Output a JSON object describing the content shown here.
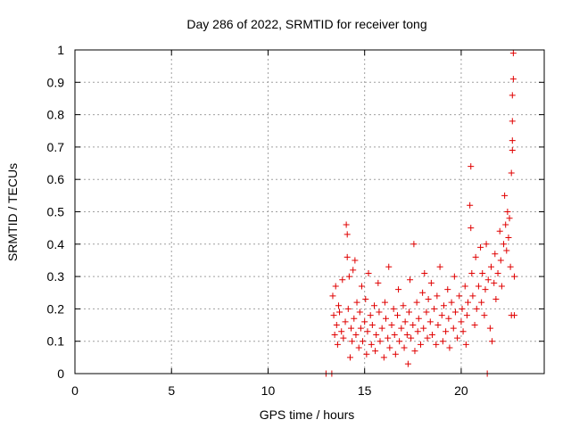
{
  "chart_data": {
    "type": "scatter",
    "title": "Day 286 of 2022, SRMTID for receiver tong",
    "xlabel": "GPS time / hours",
    "ylabel": "SRMTID / TECUs",
    "xlim": [
      0,
      24.3
    ],
    "ylim": [
      0,
      1
    ],
    "xticks": [
      0,
      5,
      10,
      15,
      20
    ],
    "xtick_labels": [
      "0",
      "5",
      "10",
      "15",
      "20"
    ],
    "yticks": [
      0,
      0.1,
      0.2,
      0.3,
      0.4,
      0.5,
      0.6,
      0.7,
      0.8,
      0.9,
      1
    ],
    "ytick_labels": [
      "0",
      "0.1",
      "0.2",
      "0.3",
      "0.4",
      "0.5",
      "0.6",
      "0.7",
      "0.8",
      "0.9",
      "1"
    ],
    "grid": true,
    "marker_color": "#e00000",
    "series": [
      {
        "name": "SRMTID",
        "marker": "plus",
        "points": [
          [
            13.35,
            0.24
          ],
          [
            13.4,
            0.18
          ],
          [
            13.45,
            0.12
          ],
          [
            13.5,
            0.27
          ],
          [
            13.55,
            0.15
          ],
          [
            13.6,
            0.09
          ],
          [
            13.65,
            0.21
          ],
          [
            13.7,
            0.19
          ],
          [
            13.8,
            0.13
          ],
          [
            13.85,
            0.29
          ],
          [
            13.9,
            0.11
          ],
          [
            14.0,
            0.16
          ],
          [
            14.05,
            0.46
          ],
          [
            14.1,
            0.43
          ],
          [
            14.1,
            0.36
          ],
          [
            14.15,
            0.2
          ],
          [
            14.2,
            0.3
          ],
          [
            14.25,
            0.05
          ],
          [
            14.3,
            0.14
          ],
          [
            14.35,
            0.1
          ],
          [
            14.4,
            0.32
          ],
          [
            14.45,
            0.17
          ],
          [
            14.5,
            0.35
          ],
          [
            14.55,
            0.12
          ],
          [
            14.6,
            0.22
          ],
          [
            14.7,
            0.08
          ],
          [
            14.75,
            0.19
          ],
          [
            14.8,
            0.14
          ],
          [
            14.85,
            0.27
          ],
          [
            14.9,
            0.1
          ],
          [
            15.0,
            0.16
          ],
          [
            15.05,
            0.23
          ],
          [
            15.1,
            0.06
          ],
          [
            15.15,
            0.13
          ],
          [
            15.2,
            0.31
          ],
          [
            15.3,
            0.18
          ],
          [
            15.35,
            0.09
          ],
          [
            15.4,
            0.15
          ],
          [
            15.5,
            0.21
          ],
          [
            15.55,
            0.07
          ],
          [
            15.6,
            0.12
          ],
          [
            15.7,
            0.28
          ],
          [
            15.75,
            0.19
          ],
          [
            15.8,
            0.1
          ],
          [
            15.9,
            0.14
          ],
          [
            16.0,
            0.05
          ],
          [
            16.05,
            0.22
          ],
          [
            16.1,
            0.17
          ],
          [
            16.2,
            0.11
          ],
          [
            16.25,
            0.33
          ],
          [
            16.3,
            0.08
          ],
          [
            16.4,
            0.15
          ],
          [
            16.5,
            0.2
          ],
          [
            16.55,
            0.12
          ],
          [
            16.6,
            0.06
          ],
          [
            16.7,
            0.18
          ],
          [
            16.75,
            0.26
          ],
          [
            16.8,
            0.1
          ],
          [
            16.9,
            0.14
          ],
          [
            17.0,
            0.21
          ],
          [
            17.05,
            0.08
          ],
          [
            17.1,
            0.16
          ],
          [
            17.2,
            0.12
          ],
          [
            17.25,
            0.03
          ],
          [
            17.3,
            0.19
          ],
          [
            17.35,
            0.29
          ],
          [
            17.4,
            0.11
          ],
          [
            17.5,
            0.15
          ],
          [
            17.55,
            0.4
          ],
          [
            17.6,
            0.07
          ],
          [
            17.7,
            0.22
          ],
          [
            17.75,
            0.13
          ],
          [
            17.8,
            0.17
          ],
          [
            17.9,
            0.09
          ],
          [
            18.0,
            0.25
          ],
          [
            18.05,
            0.14
          ],
          [
            18.1,
            0.31
          ],
          [
            18.2,
            0.19
          ],
          [
            18.25,
            0.11
          ],
          [
            18.3,
            0.23
          ],
          [
            18.4,
            0.16
          ],
          [
            18.45,
            0.28
          ],
          [
            18.5,
            0.12
          ],
          [
            18.6,
            0.2
          ],
          [
            18.7,
            0.09
          ],
          [
            18.75,
            0.24
          ],
          [
            18.8,
            0.15
          ],
          [
            18.9,
            0.33
          ],
          [
            19.0,
            0.18
          ],
          [
            19.05,
            0.1
          ],
          [
            19.1,
            0.21
          ],
          [
            19.2,
            0.13
          ],
          [
            19.3,
            0.26
          ],
          [
            19.35,
            0.17
          ],
          [
            19.4,
            0.08
          ],
          [
            19.5,
            0.22
          ],
          [
            19.6,
            0.14
          ],
          [
            19.65,
            0.3
          ],
          [
            19.7,
            0.19
          ],
          [
            19.8,
            0.11
          ],
          [
            19.9,
            0.24
          ],
          [
            20.0,
            0.16
          ],
          [
            20.05,
            0.2
          ],
          [
            20.1,
            0.13
          ],
          [
            20.2,
            0.27
          ],
          [
            20.25,
            0.09
          ],
          [
            20.3,
            0.18
          ],
          [
            20.35,
            0.22
          ],
          [
            20.45,
            0.52
          ],
          [
            20.5,
            0.45
          ],
          [
            20.5,
            0.64
          ],
          [
            20.55,
            0.31
          ],
          [
            20.6,
            0.24
          ],
          [
            20.7,
            0.15
          ],
          [
            20.75,
            0.36
          ],
          [
            20.8,
            0.2
          ],
          [
            20.9,
            0.27
          ],
          [
            21.0,
            0.39
          ],
          [
            21.05,
            0.22
          ],
          [
            21.1,
            0.31
          ],
          [
            21.2,
            0.18
          ],
          [
            21.25,
            0.26
          ],
          [
            21.3,
            0.4
          ],
          [
            21.4,
            0.29
          ],
          [
            21.5,
            0.14
          ],
          [
            21.55,
            0.33
          ],
          [
            21.6,
            0.1
          ],
          [
            21.7,
            0.28
          ],
          [
            21.75,
            0.37
          ],
          [
            21.8,
            0.23
          ],
          [
            21.9,
            0.31
          ],
          [
            22.0,
            0.44
          ],
          [
            22.05,
            0.35
          ],
          [
            22.1,
            0.27
          ],
          [
            22.2,
            0.4
          ],
          [
            22.25,
            0.55
          ],
          [
            22.3,
            0.46
          ],
          [
            22.35,
            0.38
          ],
          [
            22.4,
            0.5
          ],
          [
            22.45,
            0.42
          ],
          [
            22.5,
            0.48
          ],
          [
            22.55,
            0.33
          ],
          [
            22.6,
            0.18
          ],
          [
            22.6,
            0.62
          ],
          [
            22.65,
            0.69
          ],
          [
            22.65,
            0.72
          ],
          [
            22.65,
            0.78
          ],
          [
            22.65,
            0.86
          ],
          [
            22.7,
            0.91
          ],
          [
            22.7,
            0.99
          ],
          [
            22.75,
            0.3
          ],
          [
            22.75,
            0.18
          ],
          [
            13.0,
            0.0
          ],
          [
            13.3,
            0.0
          ],
          [
            21.35,
            0.0
          ]
        ]
      }
    ]
  }
}
